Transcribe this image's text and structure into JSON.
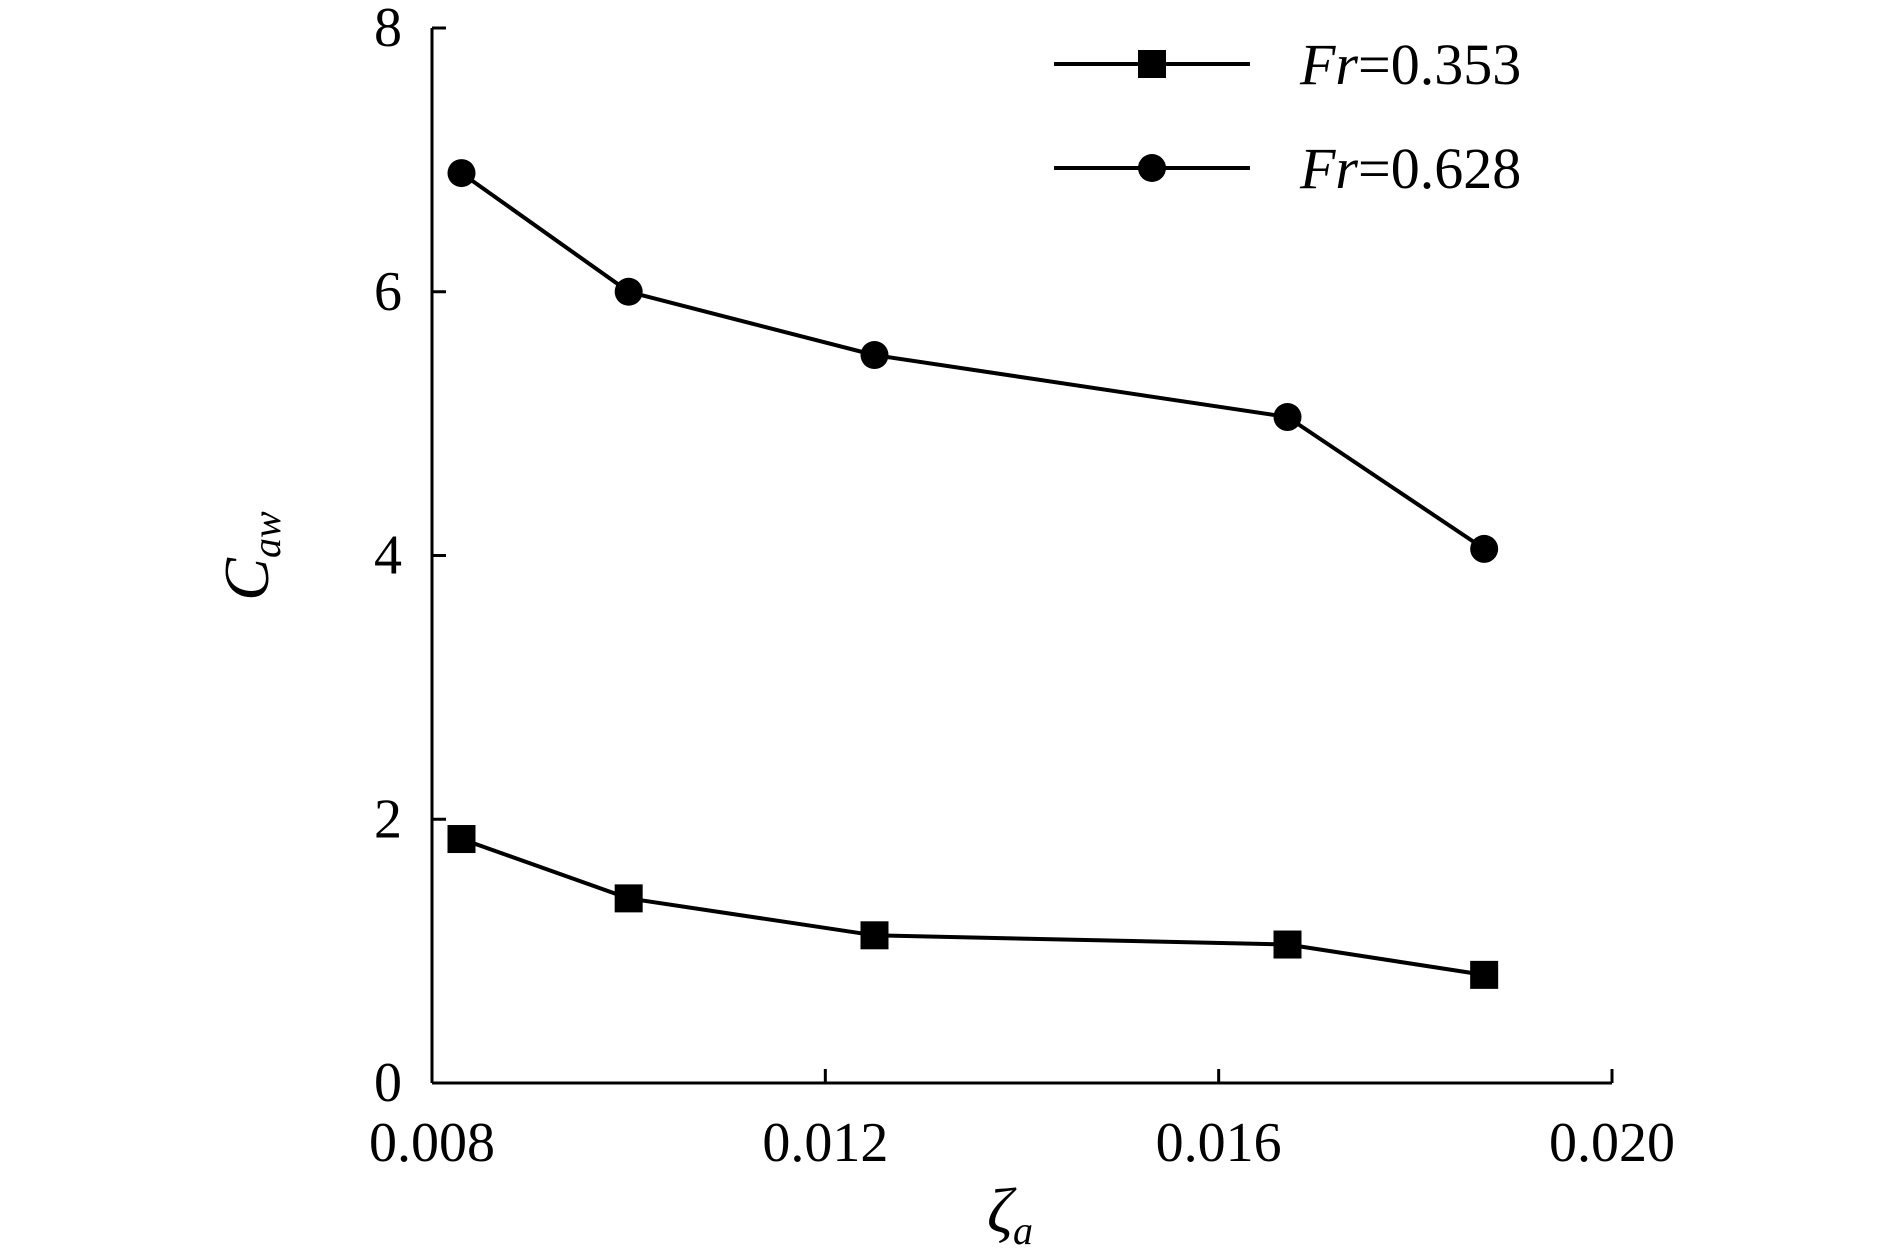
{
  "chart_data": {
    "type": "line",
    "title": "",
    "xlabel": {
      "main": "ζ",
      "sub": "a"
    },
    "ylabel": {
      "main": "C",
      "sub": "aw"
    },
    "xlim": [
      0.008,
      0.02
    ],
    "ylim": [
      0,
      8
    ],
    "xticks": [
      0.008,
      0.012,
      0.016,
      0.02
    ],
    "xtick_labels": [
      "0.008",
      "0.012",
      "0.016",
      "0.020"
    ],
    "yticks": [
      0,
      2,
      4,
      6,
      8
    ],
    "ytick_labels": [
      "0",
      "2",
      "4",
      "6",
      "8"
    ],
    "grid": false,
    "legend": "top-right",
    "series": [
      {
        "key": "fr353",
        "name_italic": "Fr",
        "name_rest": "=0.353",
        "marker": "square",
        "color": "#000000",
        "x": [
          0.0083,
          0.01,
          0.0125,
          0.0167,
          0.0187
        ],
        "y": [
          1.85,
          1.4,
          1.12,
          1.05,
          0.82
        ]
      },
      {
        "key": "fr628",
        "name_italic": "Fr",
        "name_rest": "=0.628",
        "marker": "circle",
        "color": "#000000",
        "x": [
          0.0083,
          0.01,
          0.0125,
          0.0167,
          0.0187
        ],
        "y": [
          6.9,
          6.0,
          5.52,
          5.05,
          4.05
        ]
      }
    ]
  }
}
